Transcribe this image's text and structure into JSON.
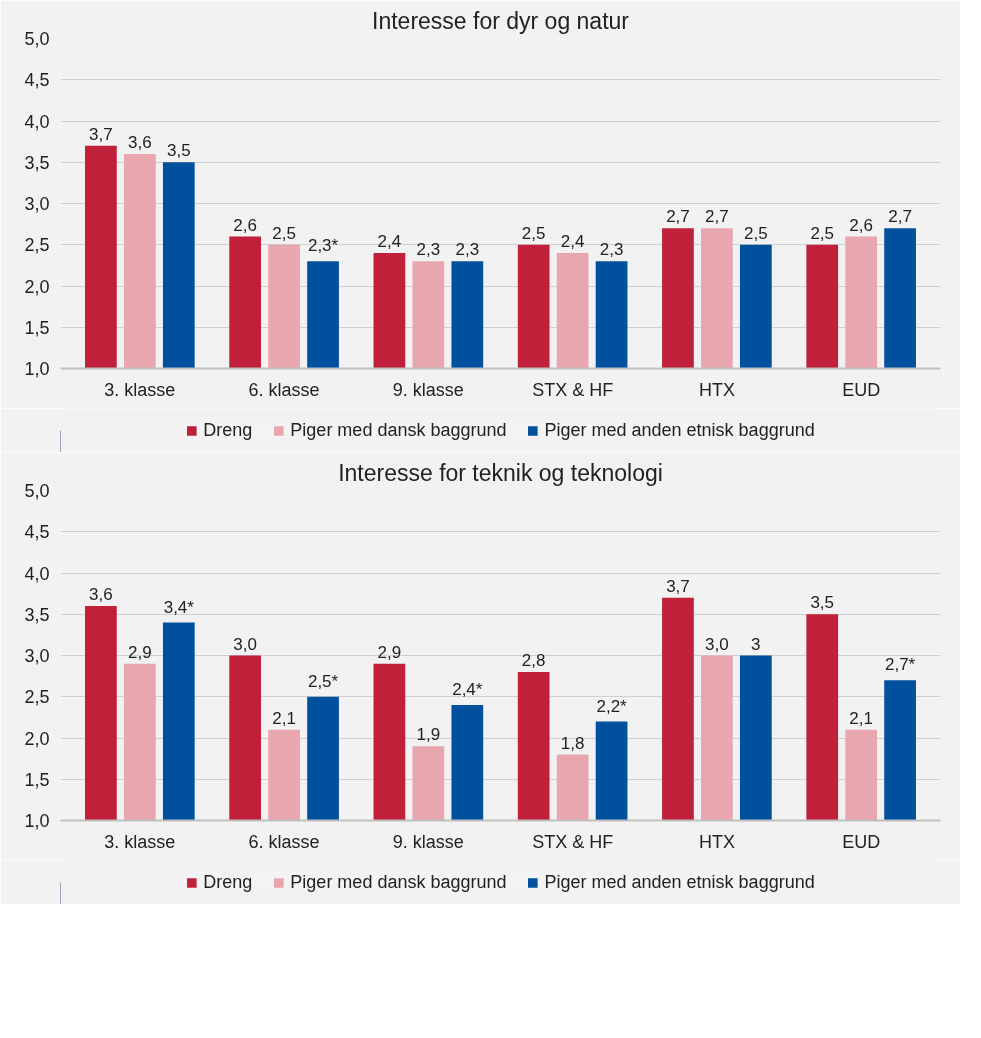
{
  "chart_data": [
    {
      "type": "bar",
      "title": "Interesse for dyr og natur",
      "categories": [
        "3. klasse",
        "6. klasse",
        "9. klasse",
        "STX & HF",
        "HTX",
        "EUD"
      ],
      "series": [
        {
          "name": "Dreng",
          "color": "#c0203a",
          "values": [
            3.7,
            2.6,
            2.4,
            2.5,
            2.7,
            2.5
          ],
          "value_labels": [
            "3,7",
            "2,6",
            "2,4",
            "2,5",
            "2,7",
            "2,5"
          ]
        },
        {
          "name": "Piger med dansk baggrund",
          "color": "#e8a6ae",
          "values": [
            3.6,
            2.5,
            2.3,
            2.4,
            2.7,
            2.6
          ],
          "value_labels": [
            "3,6",
            "2,5",
            "2,3",
            "2,4",
            "2,7",
            "2,6"
          ]
        },
        {
          "name": "Piger med anden etnisk baggrund",
          "color": "#00509e",
          "values": [
            3.5,
            2.3,
            2.3,
            2.3,
            2.5,
            2.7
          ],
          "value_labels": [
            "3,5",
            "2,3*",
            "2,3",
            "2,3",
            "2,5",
            "2,7"
          ]
        }
      ],
      "ylim": [
        1,
        5
      ],
      "yticks": [
        {
          "value": 1,
          "label": "1,0"
        },
        {
          "value": 1.5,
          "label": "1,5"
        },
        {
          "value": 2,
          "label": "2,0"
        },
        {
          "value": 2.5,
          "label": "2,5"
        },
        {
          "value": 3,
          "label": "3,0"
        },
        {
          "value": 3.5,
          "label": "3,5"
        },
        {
          "value": 4,
          "label": "4,0"
        },
        {
          "value": 4.5,
          "label": "4,5"
        },
        {
          "value": 5,
          "label": "5,0"
        }
      ],
      "grid": "y",
      "legend": "bottom"
    },
    {
      "type": "bar",
      "title": "Interesse for teknik og teknologi",
      "categories": [
        "3. klasse",
        "6. klasse",
        "9. klasse",
        "STX & HF",
        "HTX",
        "EUD"
      ],
      "series": [
        {
          "name": "Dreng",
          "color": "#c0203a",
          "values": [
            3.6,
            3.0,
            2.9,
            2.8,
            3.7,
            3.5
          ],
          "value_labels": [
            "3,6",
            "3,0",
            "2,9",
            "2,8",
            "3,7",
            "3,5"
          ]
        },
        {
          "name": "Piger med dansk baggrund",
          "color": "#e8a6ae",
          "values": [
            2.9,
            2.1,
            1.9,
            1.8,
            3.0,
            2.1
          ],
          "value_labels": [
            "2,9",
            "2,1",
            "1,9",
            "1,8",
            "3,0",
            "2,1"
          ]
        },
        {
          "name": "Piger med anden etnisk baggrund",
          "color": "#00509e",
          "values": [
            3.4,
            2.5,
            2.4,
            2.2,
            3.0,
            2.7
          ],
          "value_labels": [
            "3,4*",
            "2,5*",
            "2,4*",
            "2,2*",
            "3",
            "2,7*"
          ]
        }
      ],
      "ylim": [
        1,
        5
      ],
      "yticks": [
        {
          "value": 1,
          "label": "1,0"
        },
        {
          "value": 1.5,
          "label": "1,5"
        },
        {
          "value": 2,
          "label": "2,0"
        },
        {
          "value": 2.5,
          "label": "2,5"
        },
        {
          "value": 3,
          "label": "3,0"
        },
        {
          "value": 3.5,
          "label": "3,5"
        },
        {
          "value": 4,
          "label": "4,0"
        },
        {
          "value": 4.5,
          "label": "4,5"
        },
        {
          "value": 5,
          "label": "5,0"
        }
      ],
      "grid": "y",
      "legend": "bottom"
    }
  ]
}
